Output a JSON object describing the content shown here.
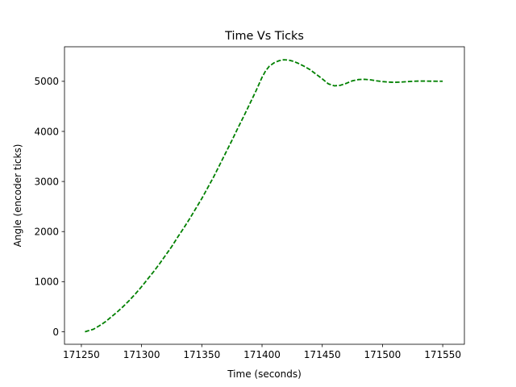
{
  "chart_data": {
    "type": "line",
    "title": "Time Vs Ticks",
    "xlabel": "Time (seconds)",
    "ylabel": "Angle (encoder ticks)",
    "xlim": [
      171236,
      171568
    ],
    "ylim": [
      -250,
      5690
    ],
    "xticks": [
      171250,
      171300,
      171350,
      171400,
      171450,
      171500,
      171550
    ],
    "yticks": [
      0,
      1000,
      2000,
      3000,
      4000,
      5000
    ],
    "grid": false,
    "legend": "none",
    "series": [
      {
        "color": "#008000",
        "linestyle": "dashed",
        "x": [
          171253,
          171260,
          171265,
          171270,
          171275,
          171280,
          171285,
          171290,
          171295,
          171300,
          171305,
          171310,
          171315,
          171320,
          171325,
          171330,
          171335,
          171340,
          171345,
          171350,
          171355,
          171360,
          171365,
          171370,
          171375,
          171380,
          171385,
          171390,
          171395,
          171400,
          171403,
          171406,
          171410,
          171414,
          171418,
          171422,
          171426,
          171430,
          171435,
          171440,
          171445,
          171450,
          171455,
          171460,
          171465,
          171470,
          171475,
          171480,
          171485,
          171490,
          171495,
          171500,
          171505,
          171510,
          171515,
          171520,
          171525,
          171530,
          171535,
          171540,
          171545,
          171550
        ],
        "y": [
          0,
          50,
          120,
          200,
          300,
          400,
          510,
          630,
          760,
          900,
          1050,
          1200,
          1360,
          1530,
          1700,
          1890,
          2070,
          2260,
          2460,
          2660,
          2880,
          3100,
          3340,
          3580,
          3820,
          4070,
          4310,
          4560,
          4810,
          5080,
          5210,
          5300,
          5370,
          5410,
          5430,
          5425,
          5400,
          5360,
          5300,
          5230,
          5140,
          5050,
          4950,
          4910,
          4920,
          4960,
          5010,
          5035,
          5040,
          5030,
          5010,
          4995,
          4985,
          4980,
          4985,
          4993,
          5000,
          5005,
          5005,
          5003,
          5002,
          5002
        ]
      }
    ]
  }
}
